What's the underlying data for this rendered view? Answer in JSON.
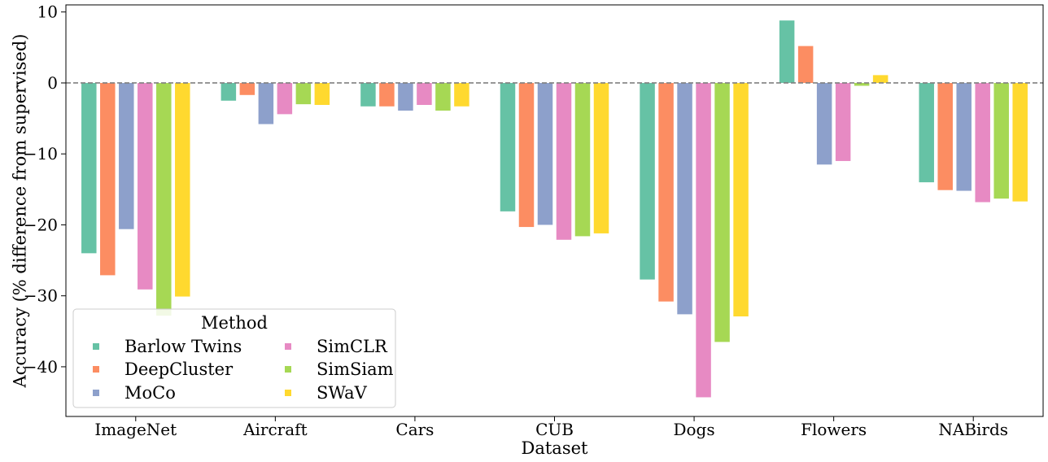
{
  "chart_data": {
    "type": "bar",
    "xlabel": "Dataset",
    "ylabel": "Accuracy (% difference from supervised)",
    "ylim": [
      -47,
      11
    ],
    "yticks": [
      10,
      0,
      -10,
      -20,
      -30,
      -40
    ],
    "ytick_labels": [
      "10",
      "0",
      "−10",
      "−20",
      "−30",
      "−40"
    ],
    "reference_line": 0,
    "categories": [
      "ImageNet",
      "Aircraft",
      "Cars",
      "CUB",
      "Dogs",
      "Flowers",
      "NABirds"
    ],
    "legend": {
      "title": "Method",
      "position": "lower-left",
      "columns": 2
    },
    "series": [
      {
        "name": "Barlow Twins",
        "color": "#66c2a5",
        "values": [
          -24.0,
          -2.5,
          -3.3,
          -18.1,
          -27.7,
          8.8,
          -14.0
        ]
      },
      {
        "name": "DeepCluster",
        "color": "#fc8d62",
        "values": [
          -27.1,
          -1.7,
          -3.3,
          -20.3,
          -30.8,
          5.2,
          -15.1
        ]
      },
      {
        "name": "MoCo",
        "color": "#8da0cb",
        "values": [
          -20.6,
          -5.8,
          -3.9,
          -20.0,
          -32.6,
          -11.5,
          -15.2
        ]
      },
      {
        "name": "SimCLR",
        "color": "#e78ac3",
        "values": [
          -29.1,
          -4.4,
          -3.1,
          -22.1,
          -44.3,
          -11.0,
          -16.8
        ]
      },
      {
        "name": "SimSiam",
        "color": "#a6d854",
        "values": [
          -32.8,
          -3.0,
          -3.9,
          -21.6,
          -36.5,
          -0.4,
          -16.3
        ]
      },
      {
        "name": "SWaV",
        "color": "#ffd92f",
        "values": [
          -30.1,
          -3.1,
          -3.3,
          -21.2,
          -32.9,
          1.1,
          -16.7
        ]
      }
    ]
  }
}
